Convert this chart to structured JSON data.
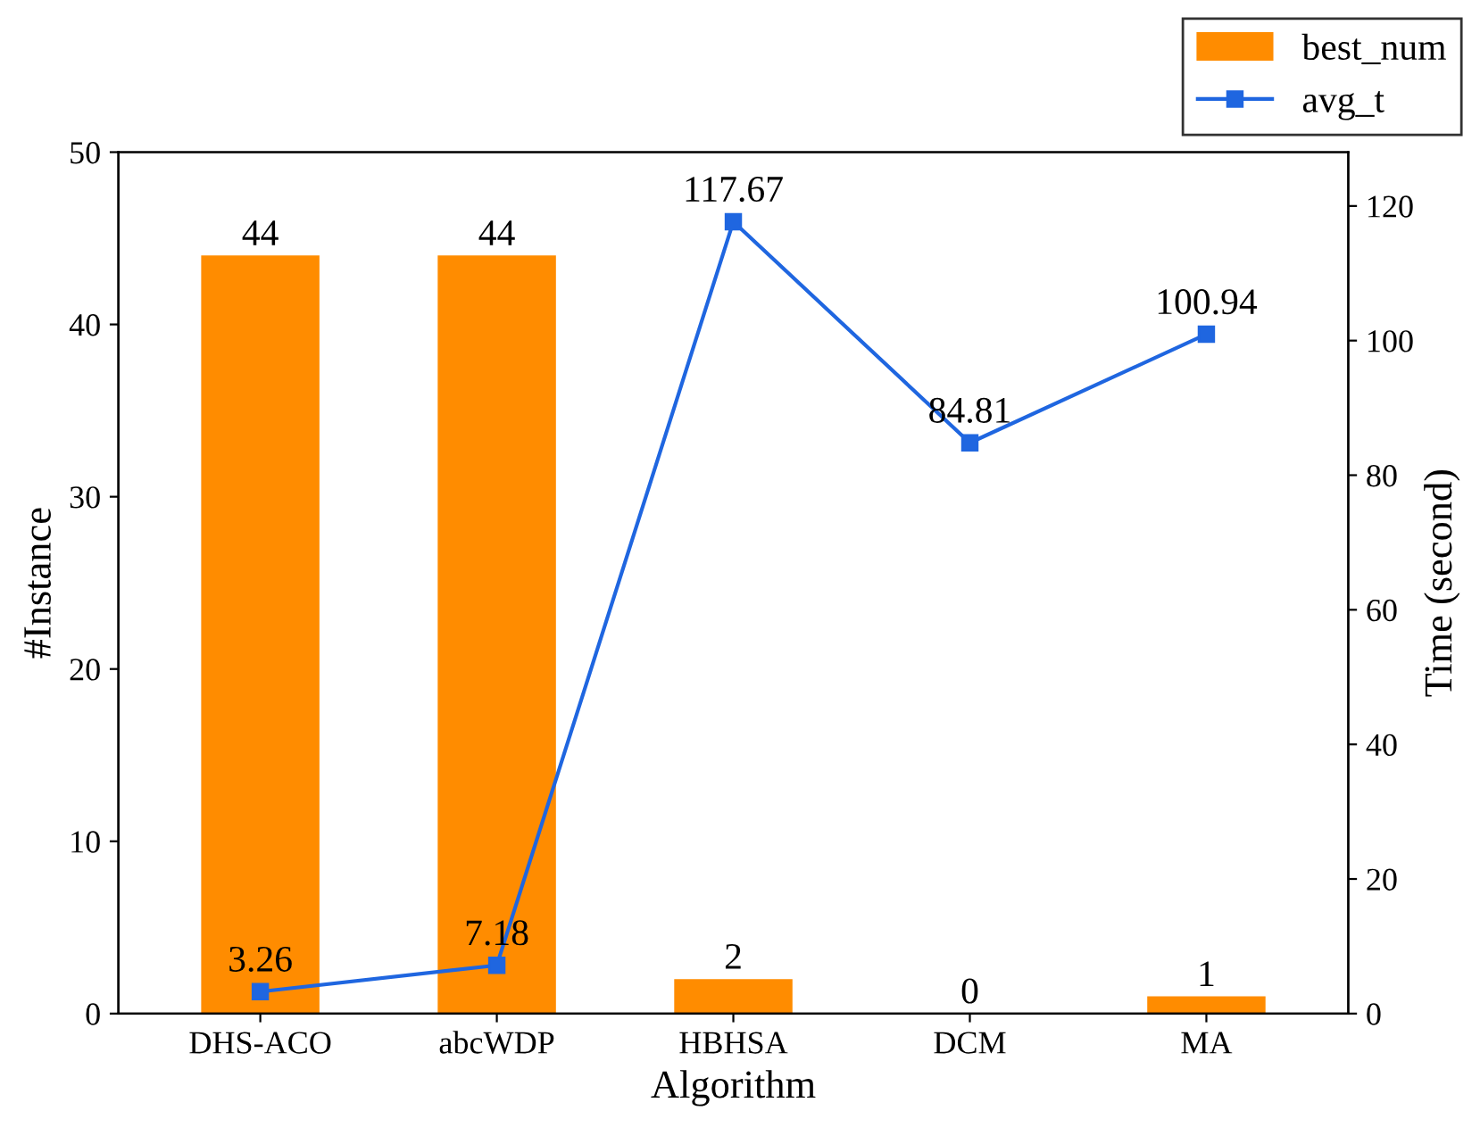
{
  "chart_data": {
    "type": "bar",
    "xlabel": "Algorithm",
    "ylabel": "#Instance",
    "y2label": "Time (second)",
    "categories": [
      "DHS-ACO",
      "abcWDP",
      "HBHSA",
      "DCM",
      "MA"
    ],
    "series": [
      {
        "name": "best_num",
        "color": "#ff8c00",
        "values": [
          44,
          44,
          2,
          0,
          1
        ]
      },
      {
        "name": "avg_t",
        "type": "line",
        "axis": "y2",
        "color": "#1f66e0",
        "marker": "square",
        "line_style": "solid",
        "values": [
          3.26,
          7.18,
          117.67,
          84.81,
          100.94
        ]
      }
    ],
    "ylim": [
      0,
      50
    ],
    "yticks": [
      0,
      10,
      20,
      30,
      40,
      50
    ],
    "y2lim": [
      0,
      128
    ],
    "y2ticks": [
      0,
      20,
      40,
      60,
      80,
      100,
      120
    ],
    "data_labels": true,
    "grid": false,
    "legend": "top right"
  }
}
